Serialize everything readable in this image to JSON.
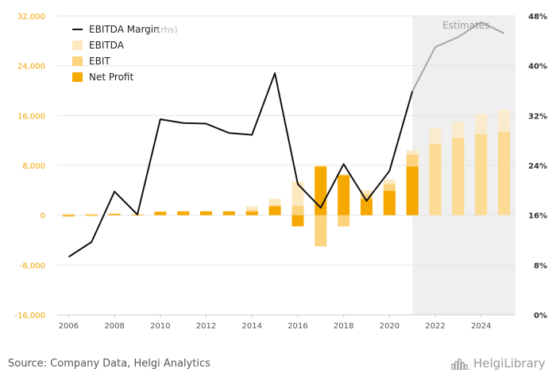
{
  "chart_data": {
    "type": "bar+line",
    "years": [
      2006,
      2007,
      2008,
      2009,
      2010,
      2011,
      2012,
      2013,
      2014,
      2015,
      2016,
      2017,
      2018,
      2019,
      2020,
      2021,
      2022,
      2023,
      2024,
      2025
    ],
    "series": [
      {
        "name": "EBITDA",
        "axis": "left",
        "values": [
          300,
          300,
          350,
          150,
          600,
          700,
          700,
          700,
          1400,
          2600,
          5400,
          8100,
          6600,
          4000,
          5700,
          10400,
          14000,
          15000,
          16200,
          16900
        ]
      },
      {
        "name": "EBIT",
        "axis": "left",
        "values": [
          -100,
          100,
          200,
          100,
          400,
          500,
          500,
          500,
          800,
          1600,
          1500,
          -5000,
          -1800,
          3400,
          5000,
          9700,
          11400,
          12400,
          13000,
          13400
        ]
      },
      {
        "name": "Net Profit",
        "axis": "left",
        "values": [
          -200,
          0,
          150,
          100,
          550,
          600,
          600,
          600,
          550,
          1400,
          -1800,
          7800,
          6400,
          2600,
          3900,
          7800,
          null,
          null,
          null,
          null
        ]
      },
      {
        "name": "EBITDA Margin",
        "axis": "right",
        "unit": "%",
        "values": [
          9.3,
          11.7,
          19.8,
          16.1,
          31.4,
          30.8,
          30.7,
          29.2,
          28.9,
          38.8,
          21.0,
          17.2,
          24.2,
          18.3,
          23.1,
          35.9,
          43.0,
          44.6,
          47.0,
          45.2
        ]
      }
    ],
    "estimates_from": 2021,
    "estimates_label": "Estimates",
    "y_left": {
      "min": -16000,
      "max": 32000,
      "ticks": [
        "32,000",
        "24,000",
        "16,000",
        "8,000",
        "0",
        "-8,000",
        "-16,000"
      ]
    },
    "y_right": {
      "min": 0,
      "max": 48,
      "ticks": [
        "48%",
        "40%",
        "32%",
        "24%",
        "16%",
        "8%",
        "0%"
      ]
    },
    "x_ticks": [
      "2006",
      "2008",
      "2010",
      "2012",
      "2014",
      "2016",
      "2018",
      "2020",
      "2022",
      "2024"
    ],
    "legend": [
      {
        "label": "EBITDA Margin",
        "suffix": "(rhs)",
        "kind": "line",
        "color": "#111111"
      },
      {
        "label": "EBITDA",
        "kind": "box",
        "color": "#fde9bf"
      },
      {
        "label": "EBIT",
        "kind": "box",
        "color": "#fcd47e"
      },
      {
        "label": "Net Profit",
        "kind": "box",
        "color": "#f5a800"
      }
    ],
    "colors": {
      "ebitda": "#fde9bf",
      "ebit": "#fcd47e",
      "net": "#f5a800",
      "line": "#111111",
      "line_estimate": "#a6a6a6",
      "estimate_bg": "#efefef",
      "left_axis": "#f0a500",
      "grid": "#e6e6e6"
    }
  },
  "footer": {
    "source": "Source: Company Data, Helgi Analytics",
    "brand": "HelgiLibrary"
  }
}
